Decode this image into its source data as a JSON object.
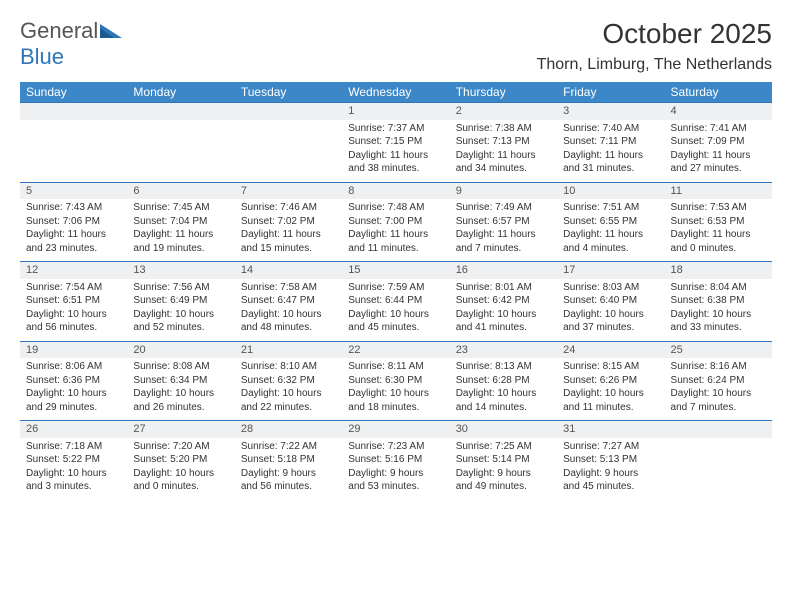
{
  "logo": {
    "text1": "General",
    "text2": "Blue"
  },
  "title": "October 2025",
  "location": "Thorn, Limburg, The Netherlands",
  "colors": {
    "header_bg": "#3b87c8",
    "header_text": "#ffffff",
    "daynum_bg": "#eef0f2",
    "row_border": "#2f76b8",
    "text": "#333333"
  },
  "weekdays": [
    "Sunday",
    "Monday",
    "Tuesday",
    "Wednesday",
    "Thursday",
    "Friday",
    "Saturday"
  ],
  "weeks": [
    [
      null,
      null,
      null,
      {
        "n": "1",
        "sr": "7:37 AM",
        "ss": "7:15 PM",
        "dh": "11",
        "dm": "38"
      },
      {
        "n": "2",
        "sr": "7:38 AM",
        "ss": "7:13 PM",
        "dh": "11",
        "dm": "34"
      },
      {
        "n": "3",
        "sr": "7:40 AM",
        "ss": "7:11 PM",
        "dh": "11",
        "dm": "31"
      },
      {
        "n": "4",
        "sr": "7:41 AM",
        "ss": "7:09 PM",
        "dh": "11",
        "dm": "27"
      }
    ],
    [
      {
        "n": "5",
        "sr": "7:43 AM",
        "ss": "7:06 PM",
        "dh": "11",
        "dm": "23"
      },
      {
        "n": "6",
        "sr": "7:45 AM",
        "ss": "7:04 PM",
        "dh": "11",
        "dm": "19"
      },
      {
        "n": "7",
        "sr": "7:46 AM",
        "ss": "7:02 PM",
        "dh": "11",
        "dm": "15"
      },
      {
        "n": "8",
        "sr": "7:48 AM",
        "ss": "7:00 PM",
        "dh": "11",
        "dm": "11"
      },
      {
        "n": "9",
        "sr": "7:49 AM",
        "ss": "6:57 PM",
        "dh": "11",
        "dm": "7"
      },
      {
        "n": "10",
        "sr": "7:51 AM",
        "ss": "6:55 PM",
        "dh": "11",
        "dm": "4"
      },
      {
        "n": "11",
        "sr": "7:53 AM",
        "ss": "6:53 PM",
        "dh": "11",
        "dm": "0"
      }
    ],
    [
      {
        "n": "12",
        "sr": "7:54 AM",
        "ss": "6:51 PM",
        "dh": "10",
        "dm": "56"
      },
      {
        "n": "13",
        "sr": "7:56 AM",
        "ss": "6:49 PM",
        "dh": "10",
        "dm": "52"
      },
      {
        "n": "14",
        "sr": "7:58 AM",
        "ss": "6:47 PM",
        "dh": "10",
        "dm": "48"
      },
      {
        "n": "15",
        "sr": "7:59 AM",
        "ss": "6:44 PM",
        "dh": "10",
        "dm": "45"
      },
      {
        "n": "16",
        "sr": "8:01 AM",
        "ss": "6:42 PM",
        "dh": "10",
        "dm": "41"
      },
      {
        "n": "17",
        "sr": "8:03 AM",
        "ss": "6:40 PM",
        "dh": "10",
        "dm": "37"
      },
      {
        "n": "18",
        "sr": "8:04 AM",
        "ss": "6:38 PM",
        "dh": "10",
        "dm": "33"
      }
    ],
    [
      {
        "n": "19",
        "sr": "8:06 AM",
        "ss": "6:36 PM",
        "dh": "10",
        "dm": "29"
      },
      {
        "n": "20",
        "sr": "8:08 AM",
        "ss": "6:34 PM",
        "dh": "10",
        "dm": "26"
      },
      {
        "n": "21",
        "sr": "8:10 AM",
        "ss": "6:32 PM",
        "dh": "10",
        "dm": "22"
      },
      {
        "n": "22",
        "sr": "8:11 AM",
        "ss": "6:30 PM",
        "dh": "10",
        "dm": "18"
      },
      {
        "n": "23",
        "sr": "8:13 AM",
        "ss": "6:28 PM",
        "dh": "10",
        "dm": "14"
      },
      {
        "n": "24",
        "sr": "8:15 AM",
        "ss": "6:26 PM",
        "dh": "10",
        "dm": "11"
      },
      {
        "n": "25",
        "sr": "8:16 AM",
        "ss": "6:24 PM",
        "dh": "10",
        "dm": "7"
      }
    ],
    [
      {
        "n": "26",
        "sr": "7:18 AM",
        "ss": "5:22 PM",
        "dh": "10",
        "dm": "3"
      },
      {
        "n": "27",
        "sr": "7:20 AM",
        "ss": "5:20 PM",
        "dh": "10",
        "dm": "0"
      },
      {
        "n": "28",
        "sr": "7:22 AM",
        "ss": "5:18 PM",
        "dh": "9",
        "dm": "56"
      },
      {
        "n": "29",
        "sr": "7:23 AM",
        "ss": "5:16 PM",
        "dh": "9",
        "dm": "53"
      },
      {
        "n": "30",
        "sr": "7:25 AM",
        "ss": "5:14 PM",
        "dh": "9",
        "dm": "49"
      },
      {
        "n": "31",
        "sr": "7:27 AM",
        "ss": "5:13 PM",
        "dh": "9",
        "dm": "45"
      },
      null
    ]
  ],
  "labels": {
    "sunrise": "Sunrise:",
    "sunset": "Sunset:",
    "daylight": "Daylight:",
    "hours_and": "hours and",
    "minutes": "minutes."
  }
}
